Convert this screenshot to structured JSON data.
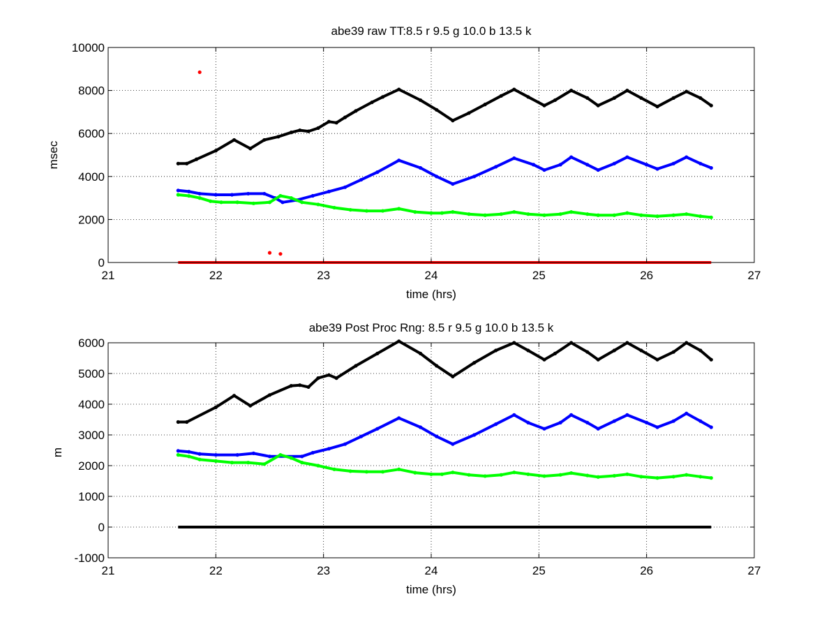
{
  "figure": {
    "background": "#ffffff",
    "colors": {
      "red": "#ff0000",
      "green": "#00ff00",
      "blue": "#0000ff",
      "black": "#000000",
      "grid": "#000000"
    }
  },
  "chart_data": [
    {
      "type": "scatter",
      "title": "abe39 raw TT:8.5 r  9.5 g  10.0 b  13.5 k",
      "xlabel": "time (hrs)",
      "ylabel": "msec",
      "xlim": [
        21,
        27
      ],
      "ylim": [
        0,
        10000
      ],
      "xticks": [
        "21",
        "22",
        "23",
        "24",
        "25",
        "26",
        "27"
      ],
      "yticks": [
        "0",
        "2000",
        "4000",
        "6000",
        "8000",
        "10000"
      ],
      "grid": true,
      "series": [
        {
          "color": "black",
          "x": [
            21.65,
            21.73,
            21.82,
            22.0,
            22.17,
            22.32,
            22.45,
            22.58,
            22.7,
            22.78,
            22.86,
            22.95,
            23.05,
            23.12,
            23.2,
            23.3,
            23.45,
            23.55,
            23.7,
            23.9,
            24.05,
            24.2,
            24.35,
            24.5,
            24.65,
            24.77,
            24.9,
            25.05,
            25.15,
            25.3,
            25.45,
            25.55,
            25.7,
            25.82,
            25.95,
            26.1,
            26.25,
            26.37,
            26.5,
            26.6
          ],
          "values": [
            4600,
            4600,
            4800,
            5200,
            5700,
            5300,
            5700,
            5850,
            6050,
            6150,
            6100,
            6250,
            6550,
            6500,
            6750,
            7050,
            7450,
            7700,
            8050,
            7550,
            7100,
            6600,
            6950,
            7350,
            7750,
            8050,
            7700,
            7300,
            7550,
            8000,
            7650,
            7300,
            7650,
            8000,
            7650,
            7250,
            7650,
            7950,
            7650,
            7300
          ]
        },
        {
          "color": "blue",
          "x": [
            21.65,
            21.75,
            21.85,
            22.0,
            22.15,
            22.3,
            22.45,
            22.55,
            22.62,
            22.75,
            22.9,
            23.05,
            23.2,
            23.35,
            23.5,
            23.7,
            23.9,
            24.05,
            24.2,
            24.4,
            24.6,
            24.77,
            24.95,
            25.05,
            25.2,
            25.3,
            25.45,
            25.55,
            25.7,
            25.82,
            26.0,
            26.1,
            26.25,
            26.37,
            26.5,
            26.6
          ],
          "values": [
            3350,
            3300,
            3200,
            3150,
            3150,
            3200,
            3200,
            3000,
            2800,
            2900,
            3100,
            3300,
            3500,
            3850,
            4200,
            4750,
            4400,
            4000,
            3650,
            4000,
            4450,
            4850,
            4550,
            4300,
            4550,
            4900,
            4550,
            4300,
            4600,
            4900,
            4550,
            4350,
            4600,
            4900,
            4600,
            4400
          ]
        },
        {
          "color": "green",
          "x": [
            21.65,
            21.75,
            21.85,
            21.95,
            22.05,
            22.2,
            22.35,
            22.5,
            22.6,
            22.7,
            22.8,
            22.95,
            23.1,
            23.25,
            23.4,
            23.55,
            23.7,
            23.85,
            24.0,
            24.1,
            24.2,
            24.35,
            24.5,
            24.65,
            24.77,
            24.9,
            25.05,
            25.2,
            25.3,
            25.45,
            25.55,
            25.7,
            25.82,
            25.95,
            26.1,
            26.25,
            26.37,
            26.5,
            26.6
          ],
          "values": [
            3150,
            3100,
            3000,
            2850,
            2800,
            2800,
            2750,
            2800,
            3100,
            3000,
            2800,
            2700,
            2550,
            2450,
            2400,
            2400,
            2500,
            2350,
            2300,
            2300,
            2350,
            2250,
            2200,
            2250,
            2350,
            2250,
            2200,
            2250,
            2350,
            2250,
            2200,
            2200,
            2300,
            2200,
            2150,
            2200,
            2250,
            2150,
            2100
          ]
        },
        {
          "color": "red",
          "x": [
            21.85,
            22.5,
            22.6
          ],
          "values": [
            8850,
            450,
            400
          ]
        }
      ]
    },
    {
      "type": "scatter",
      "title": "abe39 Post Proc Rng: 8.5 r  9.5 g  10.0 b  13.5  k",
      "xlabel": "time (hrs)",
      "ylabel": "m",
      "xlim": [
        21,
        27
      ],
      "ylim": [
        -1000,
        6000
      ],
      "xticks": [
        "21",
        "22",
        "23",
        "24",
        "25",
        "26",
        "27"
      ],
      "yticks": [
        "-1000",
        "0",
        "1000",
        "2000",
        "3000",
        "4000",
        "5000",
        "6000"
      ],
      "grid": true,
      "series": [
        {
          "color": "black",
          "x": [
            21.65,
            21.73,
            22.0,
            22.17,
            22.32,
            22.5,
            22.7,
            22.78,
            22.86,
            22.95,
            23.05,
            23.12,
            23.3,
            23.5,
            23.7,
            23.9,
            24.05,
            24.2,
            24.4,
            24.6,
            24.77,
            24.9,
            25.05,
            25.15,
            25.3,
            25.45,
            25.55,
            25.7,
            25.82,
            25.95,
            26.1,
            26.25,
            26.37,
            26.5,
            26.6
          ],
          "values": [
            3420,
            3420,
            3900,
            4280,
            3950,
            4300,
            4600,
            4620,
            4560,
            4850,
            4950,
            4850,
            5250,
            5650,
            6050,
            5650,
            5250,
            4900,
            5350,
            5750,
            6000,
            5750,
            5450,
            5650,
            6000,
            5700,
            5450,
            5750,
            6000,
            5750,
            5450,
            5700,
            6000,
            5750,
            5450
          ]
        },
        {
          "color": "blue",
          "x": [
            21.65,
            21.75,
            21.85,
            22.0,
            22.2,
            22.35,
            22.5,
            22.8,
            22.9,
            23.05,
            23.2,
            23.35,
            23.5,
            23.7,
            23.9,
            24.05,
            24.2,
            24.4,
            24.6,
            24.77,
            24.9,
            25.05,
            25.2,
            25.3,
            25.45,
            25.55,
            25.7,
            25.82,
            26.0,
            26.1,
            26.25,
            26.37,
            26.5,
            26.6
          ],
          "values": [
            2480,
            2450,
            2380,
            2350,
            2350,
            2400,
            2300,
            2300,
            2420,
            2550,
            2700,
            2950,
            3200,
            3550,
            3250,
            2950,
            2700,
            3000,
            3350,
            3650,
            3400,
            3200,
            3400,
            3650,
            3400,
            3200,
            3450,
            3650,
            3400,
            3250,
            3450,
            3700,
            3450,
            3250
          ]
        },
        {
          "color": "green",
          "x": [
            21.65,
            21.75,
            21.85,
            22.0,
            22.15,
            22.3,
            22.45,
            22.6,
            22.7,
            22.8,
            22.95,
            23.1,
            23.25,
            23.4,
            23.55,
            23.7,
            23.85,
            24.0,
            24.1,
            24.2,
            24.35,
            24.5,
            24.65,
            24.77,
            24.9,
            25.05,
            25.2,
            25.3,
            25.45,
            25.55,
            25.7,
            25.82,
            25.95,
            26.1,
            26.25,
            26.37,
            26.5,
            26.6
          ],
          "values": [
            2350,
            2300,
            2200,
            2150,
            2100,
            2100,
            2050,
            2350,
            2250,
            2100,
            2000,
            1880,
            1820,
            1800,
            1800,
            1880,
            1770,
            1720,
            1720,
            1780,
            1700,
            1660,
            1700,
            1780,
            1720,
            1660,
            1700,
            1760,
            1680,
            1630,
            1670,
            1720,
            1640,
            1600,
            1640,
            1700,
            1640,
            1600
          ]
        }
      ]
    }
  ]
}
